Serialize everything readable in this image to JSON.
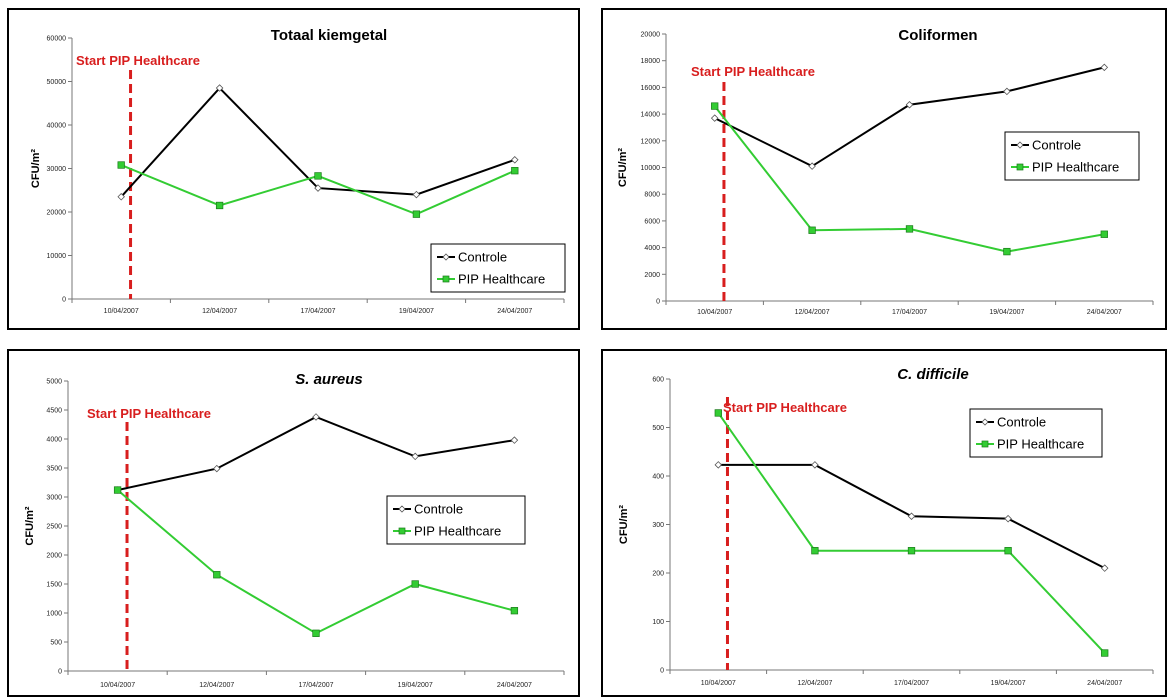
{
  "legend": {
    "controle": "Controle",
    "pip": "PIP Healthcare"
  },
  "start_label": "Start PIP Healthcare",
  "ylabel": "CFU/m²",
  "colors": {
    "controle": "#000000",
    "pip": "#33cc33",
    "start": "#d81e1e"
  },
  "chart_data": [
    {
      "type": "line",
      "title": "Totaal kiemgetal",
      "title_italic": false,
      "categories": [
        "10/04/2007",
        "12/04/2007",
        "17/04/2007",
        "19/04/2007",
        "24/04/2007"
      ],
      "ylabel": "CFU/m²",
      "ylim": [
        0,
        60000
      ],
      "yticks": [
        0,
        10000,
        20000,
        30000,
        40000,
        50000,
        60000
      ],
      "series": [
        {
          "name": "Controle",
          "values": [
            23500,
            48500,
            25500,
            24000,
            32000
          ]
        },
        {
          "name": "PIP Healthcare",
          "values": [
            30800,
            21500,
            28300,
            19500,
            29500
          ]
        }
      ],
      "legend_position": "bottom-right",
      "start_marker_category": "10/04/2007"
    },
    {
      "type": "line",
      "title": "Coliformen",
      "title_italic": false,
      "categories": [
        "10/04/2007",
        "12/04/2007",
        "17/04/2007",
        "19/04/2007",
        "24/04/2007"
      ],
      "ylabel": "CFU/m²",
      "ylim": [
        0,
        20000
      ],
      "yticks": [
        0,
        2000,
        4000,
        6000,
        8000,
        10000,
        12000,
        14000,
        16000,
        18000,
        20000
      ],
      "series": [
        {
          "name": "Controle",
          "values": [
            13700,
            10100,
            14700,
            15700,
            17500
          ]
        },
        {
          "name": "PIP Healthcare",
          "values": [
            14600,
            5300,
            5400,
            3700,
            5000
          ]
        }
      ],
      "legend_position": "right",
      "start_marker_category": "10/04/2007"
    },
    {
      "type": "line",
      "title": "S. aureus",
      "title_italic": true,
      "categories": [
        "10/04/2007",
        "12/04/2007",
        "17/04/2007",
        "19/04/2007",
        "24/04/2007"
      ],
      "ylabel": "CFU/m²",
      "ylim": [
        0,
        5000
      ],
      "yticks": [
        0,
        500,
        1000,
        1500,
        2000,
        2500,
        3000,
        3500,
        4000,
        4500,
        5000
      ],
      "series": [
        {
          "name": "Controle",
          "values": [
            3120,
            3490,
            4380,
            3700,
            3980
          ]
        },
        {
          "name": "PIP Healthcare",
          "values": [
            3120,
            1660,
            650,
            1500,
            1040
          ]
        }
      ],
      "legend_position": "right",
      "start_marker_category": "10/04/2007"
    },
    {
      "type": "line",
      "title": "C. difficile",
      "title_italic": true,
      "categories": [
        "10/04/2007",
        "12/04/2007",
        "17/04/2007",
        "19/04/2007",
        "24/04/2007"
      ],
      "ylabel": "CFU/m²",
      "ylim": [
        0,
        600
      ],
      "yticks": [
        0,
        100,
        200,
        300,
        400,
        500,
        600
      ],
      "series": [
        {
          "name": "Controle",
          "values": [
            423,
            423,
            317,
            312,
            210
          ]
        },
        {
          "name": "PIP Healthcare",
          "values": [
            530,
            246,
            246,
            246,
            35
          ]
        }
      ],
      "legend_position": "top-right",
      "start_marker_category": "10/04/2007"
    }
  ]
}
